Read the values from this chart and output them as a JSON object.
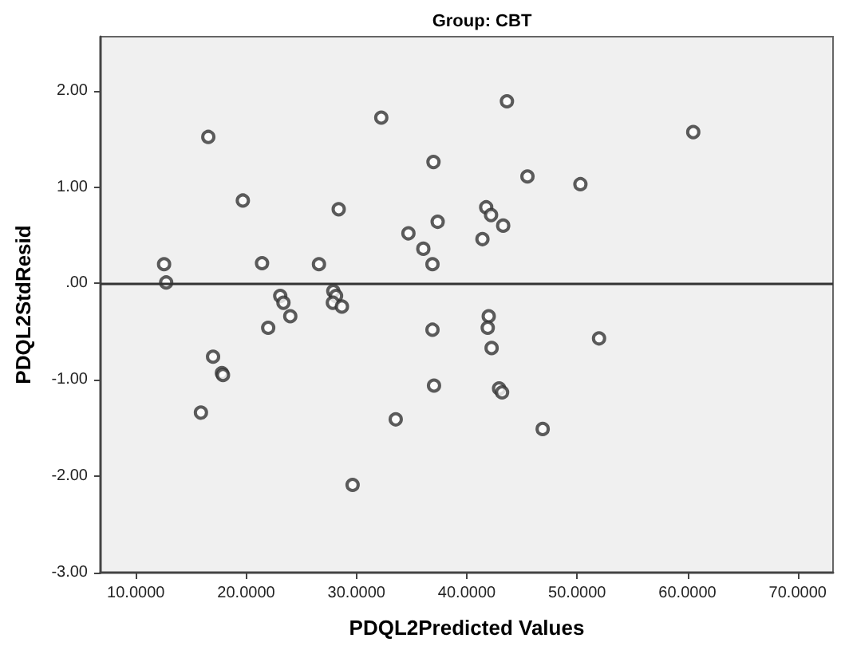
{
  "chart_data": {
    "type": "scatter",
    "title": "Group: CBT",
    "xlabel": "PDQL2Predicted Values",
    "ylabel": "PDQL2StdResid",
    "x": [
      16.57,
      19.7,
      12.56,
      12.75,
      21.44,
      26.6,
      23.09,
      23.38,
      24.0,
      22.0,
      27.9,
      28.15,
      27.86,
      28.68,
      28.39,
      32.25,
      34.71,
      36.06,
      36.98,
      36.89,
      43.64,
      60.53,
      45.5,
      50.3,
      37.36,
      41.76,
      42.2,
      43.3,
      41.42,
      41.99,
      41.9,
      36.89,
      51.99,
      42.25,
      37.03,
      42.93,
      43.2,
      46.88,
      17.0,
      17.8,
      17.9,
      15.9,
      33.56,
      29.65
    ],
    "series": [
      {
        "color": "#333333",
        "values": [
          1.52,
          0.86,
          0.2,
          0.01,
          0.21,
          0.2,
          -0.13,
          -0.2,
          -0.34,
          -0.46,
          -0.08,
          -0.13,
          -0.2,
          -0.24,
          0.77,
          1.72,
          0.52,
          0.36,
          1.26,
          0.2,
          1.89,
          1.57,
          1.11,
          1.03,
          0.64,
          0.79,
          0.71,
          0.6,
          0.46,
          -0.34,
          -0.46,
          -0.48,
          -0.57,
          -0.67,
          -1.06,
          -1.09,
          -1.13,
          -1.51,
          -0.76,
          -0.93,
          -0.95,
          -1.34,
          -1.41,
          -2.09
        ]
      }
    ],
    "xlim": [
      6.8,
      73.2
    ],
    "ylim": [
      -3,
      2.56
    ],
    "xticks": [
      {
        "value": 10,
        "label": "10.0000"
      },
      {
        "value": 20,
        "label": "20.0000"
      },
      {
        "value": 30,
        "label": "30.0000"
      },
      {
        "value": 40,
        "label": "40.0000"
      },
      {
        "value": 50,
        "label": "50.0000"
      },
      {
        "value": 60,
        "label": "60.0000"
      },
      {
        "value": 70,
        "label": "70.0000"
      }
    ],
    "yticks": [
      {
        "value": -3,
        "label": "-3.00"
      },
      {
        "value": -2,
        "label": "-2.00"
      },
      {
        "value": -1,
        "label": "-1.00"
      },
      {
        "value": 0,
        "label": ".00"
      },
      {
        "value": 1,
        "label": "1.00"
      },
      {
        "value": 2,
        "label": "2.00"
      }
    ],
    "ref_lines": [
      {
        "axis": "y",
        "value": 0,
        "color": "#333333"
      }
    ],
    "marker": "circle"
  }
}
